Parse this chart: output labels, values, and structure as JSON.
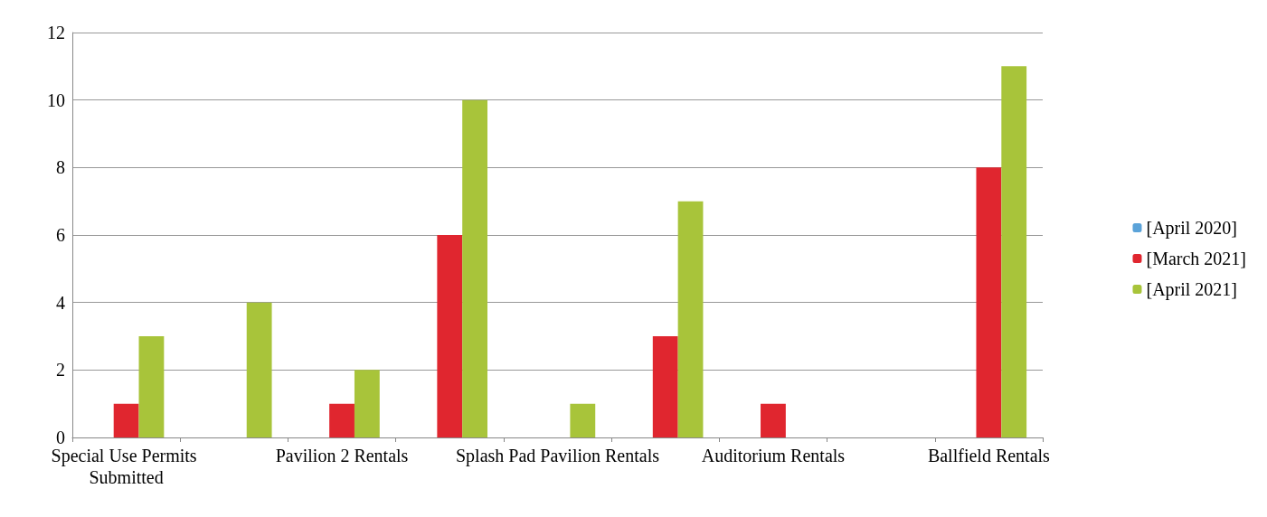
{
  "chart_data": {
    "type": "bar",
    "categories": [
      "Special Use Permits Submitted",
      null,
      "Pavilion 2 Rentals",
      null,
      "Splash Pad Pavilion Rentals",
      null,
      "Auditorium Rentals",
      null,
      "Ballfield Rentals"
    ],
    "series": [
      {
        "name": "[April 2020]",
        "color": "#5ba3d9",
        "values": [
          0,
          0,
          0,
          0,
          0,
          0,
          0,
          0,
          0
        ]
      },
      {
        "name": "[March 2021]",
        "color": "#e0262f",
        "values": [
          1,
          0,
          1,
          6,
          0,
          3,
          1,
          0,
          8
        ]
      },
      {
        "name": "[April 2021]",
        "color": "#a8c43a",
        "values": [
          3,
          4,
          2,
          10,
          1,
          7,
          0,
          0,
          11
        ]
      }
    ],
    "ylim": [
      0,
      12
    ],
    "yticks": [
      0,
      2,
      4,
      6,
      8,
      10,
      12
    ],
    "grid": "y",
    "legend": "right"
  }
}
